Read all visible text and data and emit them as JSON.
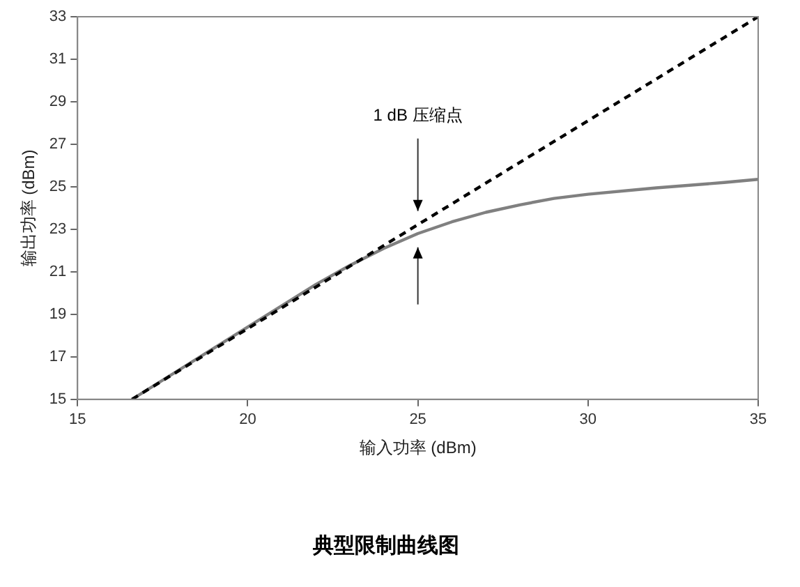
{
  "chart_data": {
    "type": "line",
    "title": "典型限制曲线图",
    "xlabel": "输入功率 (dBm)",
    "ylabel": "输出功率 (dBm)",
    "xlim": [
      15,
      35
    ],
    "xticks": [
      15,
      20,
      25,
      30,
      35
    ],
    "ylim": [
      15,
      33
    ],
    "yticks": [
      15,
      17,
      19,
      21,
      23,
      25,
      27,
      29,
      31,
      33
    ],
    "grid": false,
    "legend": false,
    "marker": "none",
    "series": [
      {
        "color": "#000000",
        "line_style": "dashed",
        "x": [
          16.6,
          35
        ],
        "values": [
          15,
          33
        ]
      },
      {
        "color": "#808080",
        "line_style": "solid",
        "x": [
          16.6,
          20,
          22,
          23,
          24,
          25,
          26,
          27,
          28,
          29,
          30,
          32,
          34,
          35
        ],
        "values": [
          15,
          18.4,
          20.4,
          21.3,
          22.1,
          22.8,
          23.35,
          23.8,
          24.15,
          24.45,
          24.65,
          24.95,
          25.2,
          25.35
        ]
      }
    ],
    "annotations": [
      "1 dB 压缩点"
    ]
  }
}
